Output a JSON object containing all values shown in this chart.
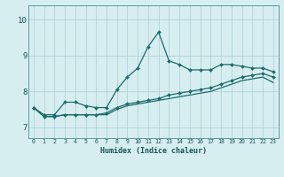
{
  "xlabel": "Humidex (Indice chaleur)",
  "background_color": "#d6eef0",
  "grid_color": "#aacdd4",
  "line_color": "#1a6b6b",
  "xlim": [
    -0.5,
    23.5
  ],
  "ylim": [
    6.7,
    10.4
  ],
  "yticks": [
    7,
    8,
    9,
    10
  ],
  "xticks": [
    0,
    1,
    2,
    3,
    4,
    5,
    6,
    7,
    8,
    9,
    10,
    11,
    12,
    13,
    14,
    15,
    16,
    17,
    18,
    19,
    20,
    21,
    22,
    23
  ],
  "line1_x": [
    0,
    1,
    2,
    3,
    4,
    5,
    6,
    7,
    8,
    9,
    10,
    11,
    12,
    13,
    14,
    15,
    16,
    17,
    18,
    19,
    20,
    21,
    22,
    23
  ],
  "line1_y": [
    7.55,
    7.35,
    7.35,
    7.7,
    7.7,
    7.6,
    7.55,
    7.55,
    8.05,
    8.4,
    8.65,
    9.25,
    9.65,
    8.85,
    8.75,
    8.6,
    8.6,
    8.6,
    8.75,
    8.75,
    8.7,
    8.65,
    8.65,
    8.55
  ],
  "line2_x": [
    0,
    1,
    2,
    3,
    4,
    5,
    6,
    7,
    8,
    9,
    10,
    11,
    12,
    13,
    14,
    15,
    16,
    17,
    18,
    19,
    20,
    21,
    22,
    23
  ],
  "line2_y": [
    7.55,
    7.3,
    7.3,
    7.35,
    7.35,
    7.35,
    7.35,
    7.4,
    7.55,
    7.65,
    7.7,
    7.75,
    7.8,
    7.9,
    7.95,
    8.0,
    8.05,
    8.1,
    8.2,
    8.3,
    8.4,
    8.45,
    8.5,
    8.4
  ],
  "line3_x": [
    0,
    1,
    2,
    3,
    4,
    5,
    6,
    7,
    8,
    9,
    10,
    11,
    12,
    13,
    14,
    15,
    16,
    17,
    18,
    19,
    20,
    21,
    22,
    23
  ],
  "line3_y": [
    7.55,
    7.3,
    7.3,
    7.35,
    7.35,
    7.35,
    7.35,
    7.35,
    7.5,
    7.6,
    7.65,
    7.7,
    7.75,
    7.8,
    7.85,
    7.9,
    7.95,
    8.0,
    8.1,
    8.2,
    8.3,
    8.35,
    8.4,
    8.25
  ]
}
